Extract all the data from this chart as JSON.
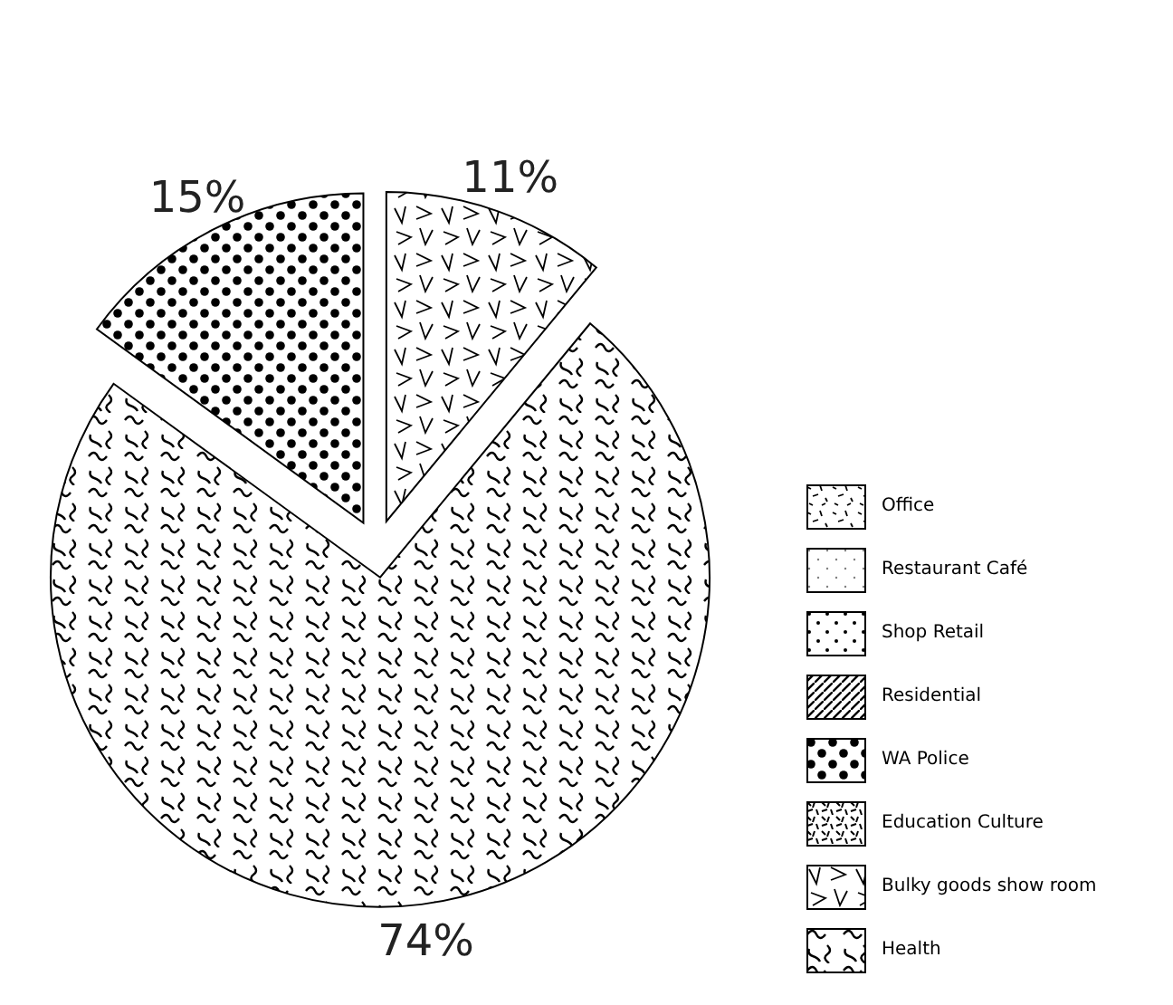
{
  "chart_data": {
    "type": "pie",
    "categories": [
      "Office",
      "Restaurant Café",
      "Shop Retail",
      "Residential",
      "WA Police",
      "Education Culture",
      "Bulky goods show room",
      "Health"
    ],
    "values": [
      0,
      0,
      0,
      0,
      15,
      0,
      11,
      74
    ],
    "value_labels": [
      null,
      null,
      null,
      null,
      "15%",
      null,
      "11%",
      "74%"
    ],
    "colors": [
      "#000000",
      "#000000",
      "#000000",
      "#000000",
      "#000000",
      "#000000",
      "#000000",
      "#000000"
    ],
    "legend": "bottom right"
  }
}
